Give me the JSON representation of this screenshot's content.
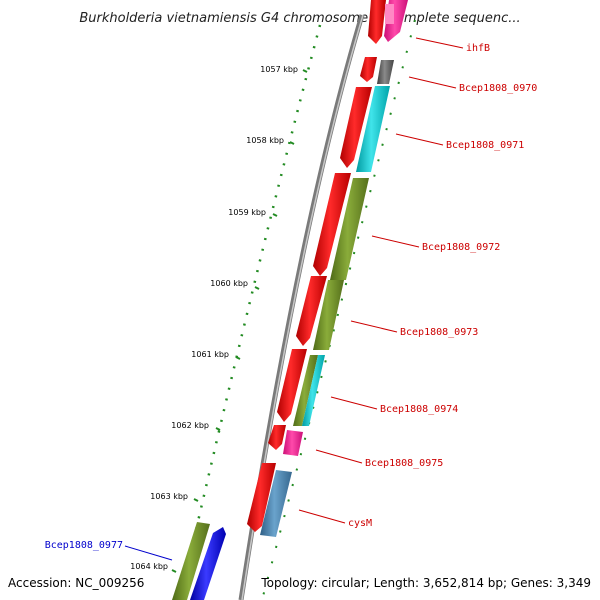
{
  "title": "Burkholderia vietnamiensis G4 chromosome 1, complete sequenc...",
  "footer": {
    "accession": "Accession: NC_009256",
    "topology": "Topology: circular; Length: 3,652,814 bp; Genes: 3,349"
  },
  "kbp_ticks": [
    "1057 kbp",
    "1058 kbp",
    "1059 kbp",
    "1060 kbp",
    "1061 kbp",
    "1062 kbp",
    "1063 kbp",
    "1064 kbp"
  ],
  "gene_labels": [
    {
      "name": "ihfB",
      "color": "#cc0000"
    },
    {
      "name": "Bcep1808_0970",
      "color": "#cc0000"
    },
    {
      "name": "Bcep1808_0971",
      "color": "#cc0000"
    },
    {
      "name": "Bcep1808_0972",
      "color": "#cc0000"
    },
    {
      "name": "Bcep1808_0973",
      "color": "#cc0000"
    },
    {
      "name": "Bcep1808_0974",
      "color": "#cc0000"
    },
    {
      "name": "Bcep1808_0975",
      "color": "#cc0000"
    },
    {
      "name": "cysM",
      "color": "#cc0000"
    },
    {
      "name": "Bcep1808_0977",
      "color": "#0000cc"
    }
  ],
  "colors": {
    "cds": "#ee0000",
    "olive": "#6b8e23",
    "cyan": "#00c8d0",
    "magenta": "#ff1493",
    "gray": "#666666",
    "steelblue": "#4682b4",
    "blue": "#0000ee",
    "tick_green": "#228b22"
  }
}
